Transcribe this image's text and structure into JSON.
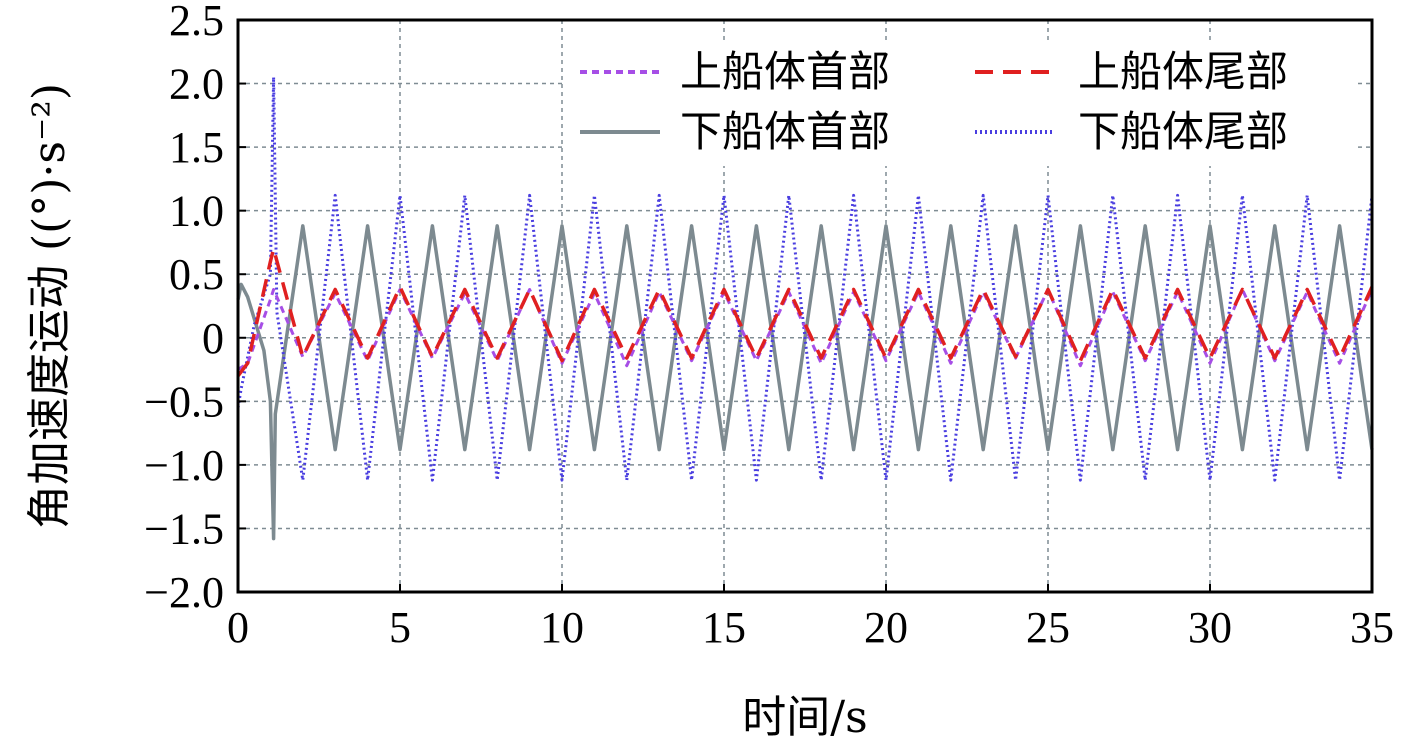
{
  "chart_data": {
    "type": "line",
    "title": "",
    "xlabel": "时间/s",
    "ylabel": "角加速度运动 ((°)·s⁻²)",
    "xlim": [
      0,
      35
    ],
    "ylim": [
      -2.0,
      2.5
    ],
    "xticks": [
      0,
      5,
      10,
      15,
      20,
      25,
      30,
      35
    ],
    "xtick_labels": [
      "0",
      "5",
      "10",
      "15",
      "20",
      "25",
      "30",
      "35"
    ],
    "yticks": [
      -2.0,
      -1.5,
      -1.0,
      -0.5,
      0,
      0.5,
      1.0,
      1.5,
      2.0,
      2.5
    ],
    "ytick_labels": [
      "−2.0",
      "−1.5",
      "−1.0",
      "−0.5",
      "0",
      "0.5",
      "1.0",
      "1.5",
      "2.0",
      "2.5"
    ],
    "grid": true,
    "legend_position": "top-right",
    "series": [
      {
        "name": "上船体首部",
        "color": "#a64ee6",
        "style": "dashed-fine",
        "x": [
          0,
          0.3,
          1.0,
          1.1,
          2.0,
          3.0,
          4.0,
          5.0,
          6.0,
          7.0,
          8.0,
          9.0,
          10.0,
          11.0,
          12.0,
          13.0,
          14.0,
          15.0,
          16.0,
          17.0,
          18.0,
          19.0,
          20.0,
          21.0,
          22.0,
          23.0,
          24.0,
          25.0,
          26.0,
          27.0,
          28.0,
          29.0,
          30.0,
          31.0,
          32.0,
          33.0,
          34.0,
          35.0
        ],
        "y": [
          -0.25,
          -0.2,
          0.3,
          0.38,
          -0.15,
          0.35,
          -0.18,
          0.38,
          -0.16,
          0.35,
          -0.18,
          0.38,
          -0.2,
          0.35,
          -0.22,
          0.36,
          -0.18,
          0.36,
          -0.18,
          0.36,
          -0.2,
          0.36,
          -0.18,
          0.36,
          -0.2,
          0.36,
          -0.16,
          0.38,
          -0.22,
          0.36,
          -0.18,
          0.36,
          -0.2,
          0.38,
          -0.18,
          0.36,
          -0.2,
          0.38
        ]
      },
      {
        "name": "上船体尾部",
        "color": "#e02020",
        "style": "dashed-long",
        "x": [
          0,
          0.3,
          1.0,
          1.1,
          2.0,
          3.0,
          4.0,
          5.0,
          6.0,
          7.0,
          8.0,
          9.0,
          10.0,
          11.0,
          12.0,
          13.0,
          14.0,
          15.0,
          16.0,
          17.0,
          18.0,
          19.0,
          20.0,
          21.0,
          22.0,
          23.0,
          24.0,
          25.0,
          26.0,
          27.0,
          28.0,
          29.0,
          30.0,
          31.0,
          32.0,
          33.0,
          34.0,
          35.0
        ],
        "y": [
          -0.3,
          -0.2,
          0.6,
          0.7,
          -0.15,
          0.38,
          -0.16,
          0.4,
          -0.15,
          0.38,
          -0.16,
          0.38,
          -0.18,
          0.38,
          -0.16,
          0.38,
          -0.16,
          0.38,
          -0.16,
          0.38,
          -0.16,
          0.38,
          -0.16,
          0.38,
          -0.16,
          0.38,
          -0.15,
          0.38,
          -0.18,
          0.38,
          -0.16,
          0.38,
          -0.16,
          0.38,
          -0.16,
          0.38,
          -0.16,
          0.4
        ]
      },
      {
        "name": "下船体首部",
        "color": "#7d8a90",
        "style": "solid",
        "x": [
          0,
          0.1,
          0.3,
          0.8,
          1.0,
          1.1,
          1.15,
          2.0,
          3.0,
          4.0,
          5.0,
          6.0,
          7.0,
          8.0,
          9.0,
          10.0,
          11.0,
          12.0,
          13.0,
          14.0,
          15.0,
          16.0,
          17.0,
          18.0,
          19.0,
          20.0,
          21.0,
          22.0,
          23.0,
          24.0,
          25.0,
          26.0,
          27.0,
          28.0,
          29.0,
          30.0,
          31.0,
          32.0,
          33.0,
          34.0,
          35.0
        ],
        "y": [
          0.3,
          0.42,
          0.32,
          -0.1,
          -0.5,
          -1.58,
          -0.6,
          0.88,
          -0.88,
          0.88,
          -0.88,
          0.88,
          -0.88,
          0.88,
          -0.88,
          0.88,
          -0.88,
          0.88,
          -0.88,
          0.88,
          -0.88,
          0.88,
          -0.88,
          0.88,
          -0.88,
          0.88,
          -0.88,
          0.88,
          -0.88,
          0.88,
          -0.88,
          0.88,
          -0.88,
          0.88,
          -0.88,
          0.88,
          -0.88,
          0.88,
          -0.88,
          0.88,
          -0.88
        ]
      },
      {
        "name": "下船体尾部",
        "color": "#4a3ee0",
        "style": "dotted",
        "x": [
          0,
          0.1,
          0.5,
          1.0,
          1.1,
          1.2,
          2.0,
          3.0,
          4.0,
          5.0,
          6.0,
          7.0,
          8.0,
          9.0,
          10.0,
          11.0,
          12.0,
          13.0,
          14.0,
          15.0,
          16.0,
          17.0,
          18.0,
          19.0,
          20.0,
          21.0,
          22.0,
          23.0,
          24.0,
          25.0,
          26.0,
          27.0,
          28.0,
          29.0,
          30.0,
          31.0,
          32.0,
          33.0,
          34.0,
          35.0
        ],
        "y": [
          -0.55,
          -0.4,
          0.1,
          0.5,
          2.05,
          0.2,
          -1.12,
          1.12,
          -1.12,
          1.12,
          -1.12,
          1.12,
          -1.12,
          1.12,
          -1.12,
          1.12,
          -1.12,
          1.12,
          -1.12,
          1.12,
          -1.12,
          1.12,
          -1.12,
          1.12,
          -1.12,
          1.12,
          -1.12,
          1.12,
          -1.12,
          1.12,
          -1.12,
          1.12,
          -1.12,
          1.12,
          -1.12,
          1.12,
          -1.12,
          1.12,
          -1.12,
          1.12
        ]
      }
    ]
  }
}
